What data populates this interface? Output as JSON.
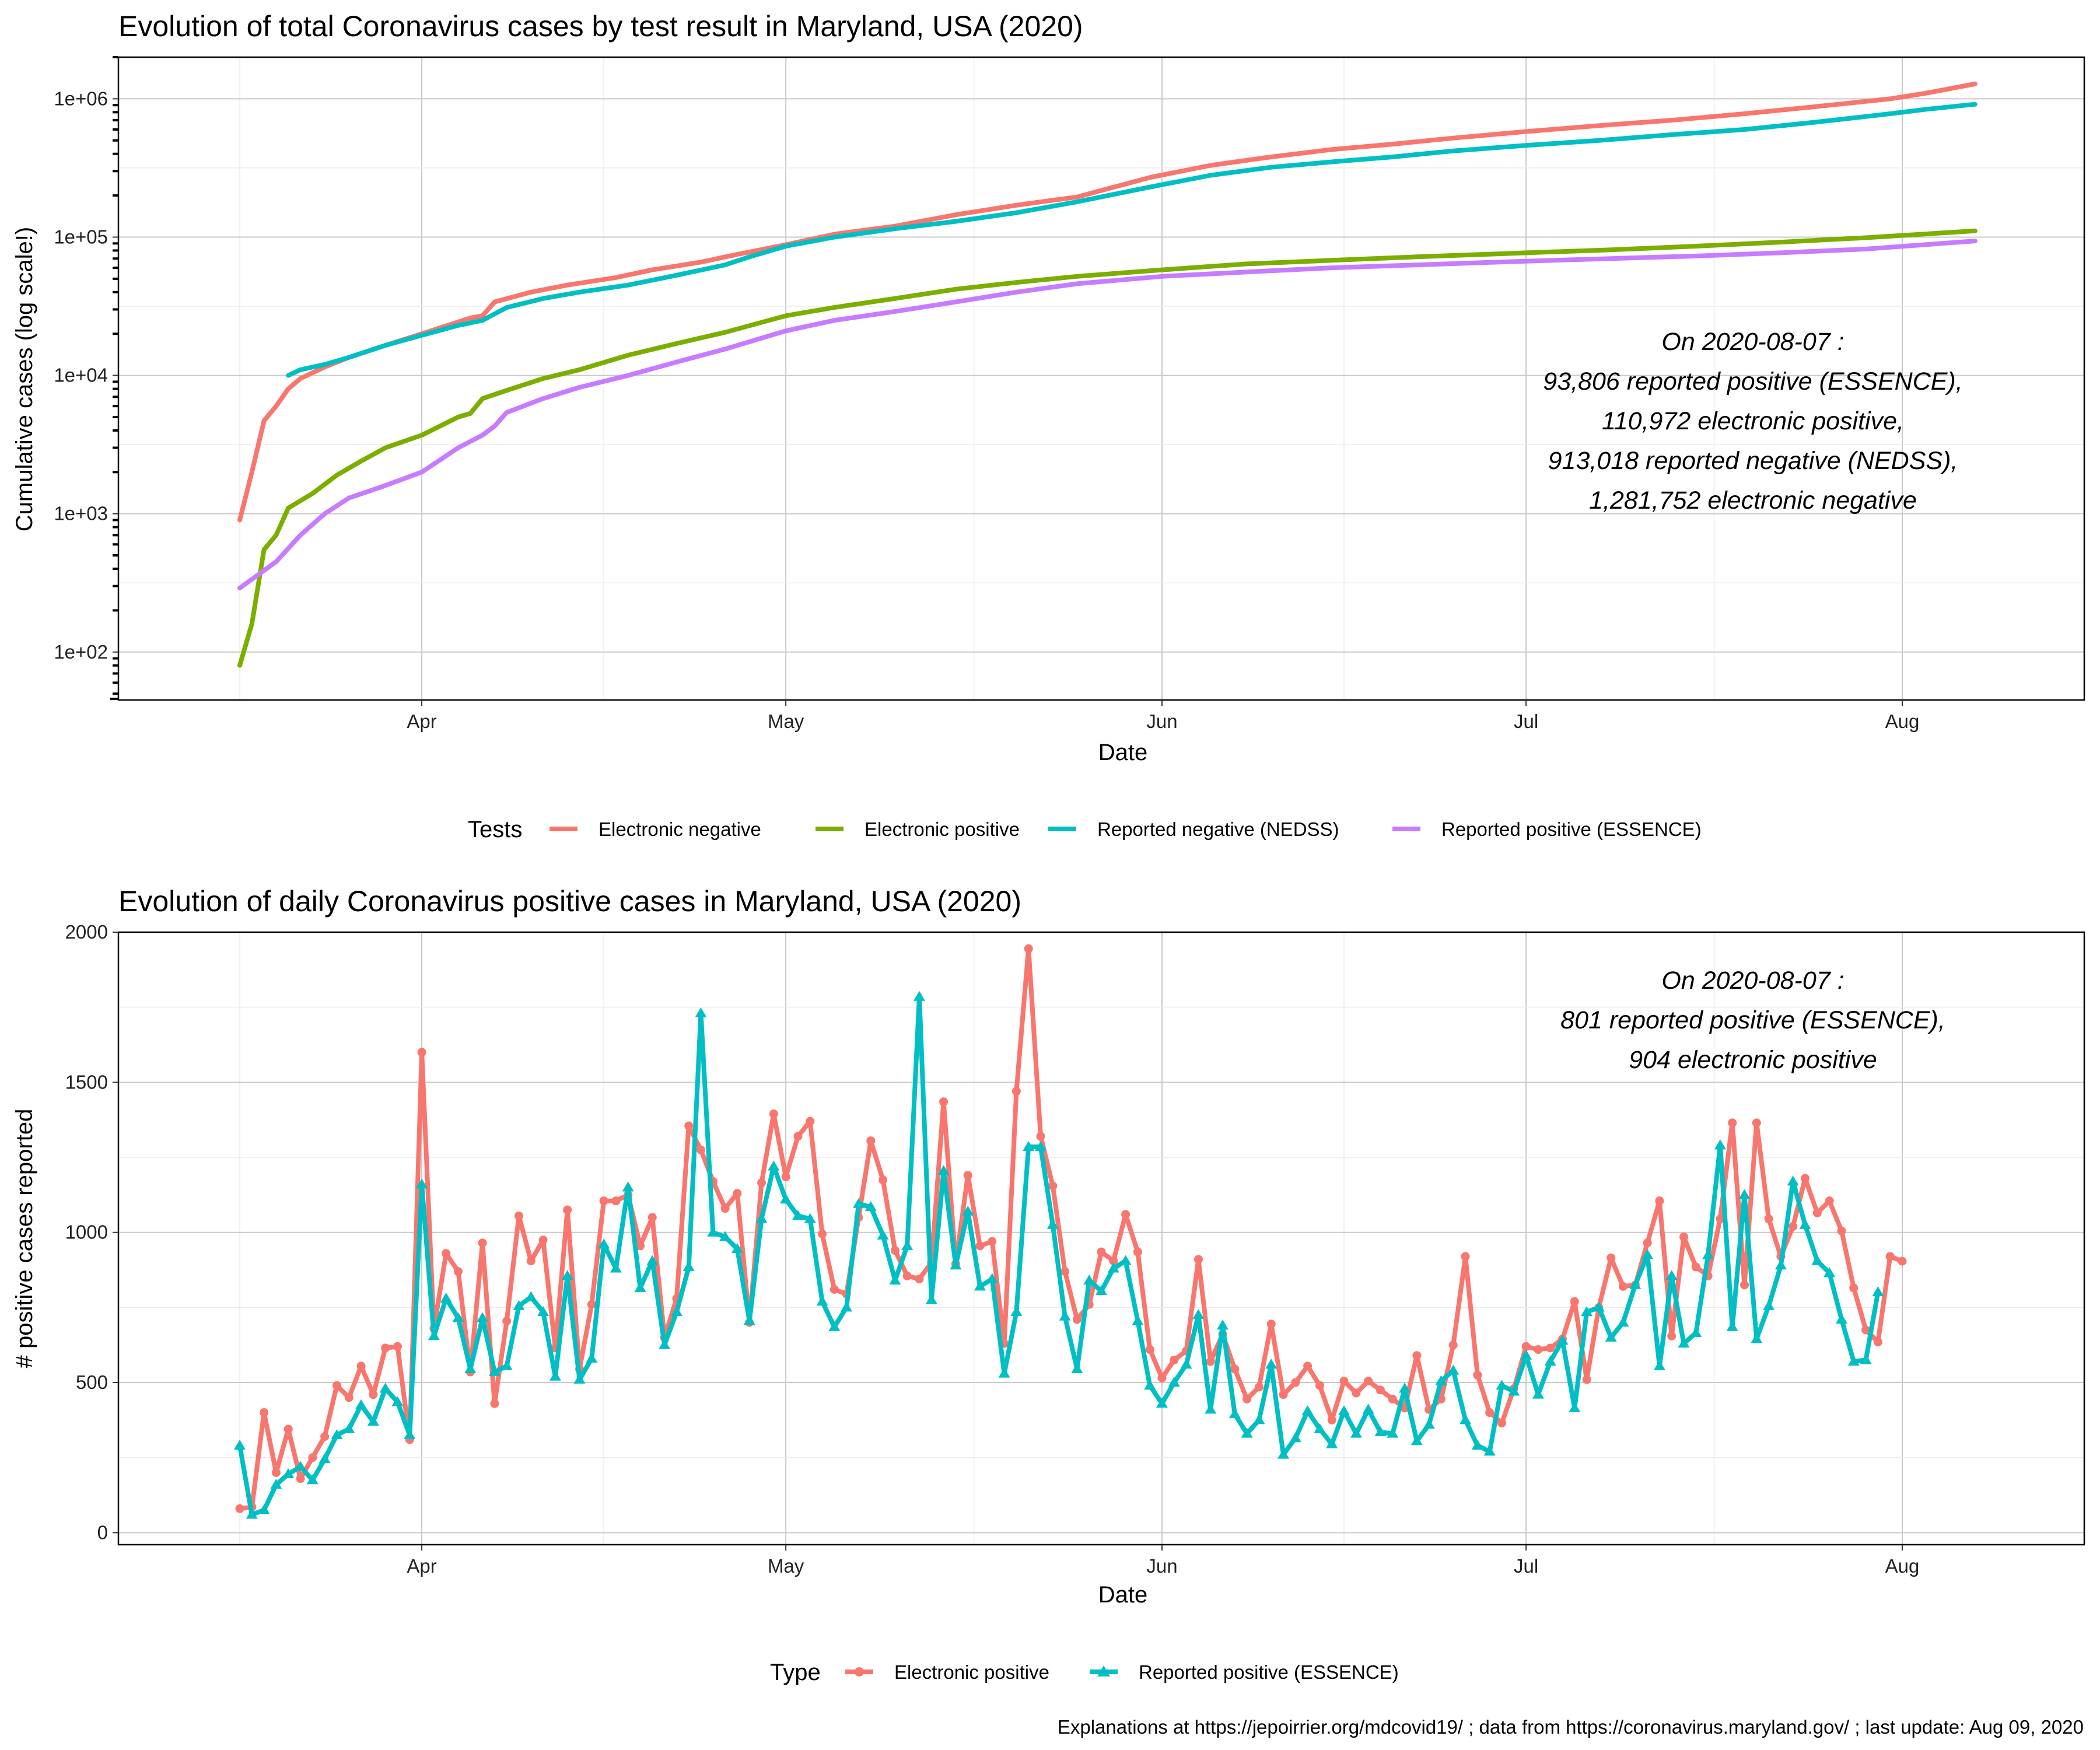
{
  "chart_data": [
    {
      "type": "line",
      "title": "Evolution of total Coronavirus cases by test result in Maryland, USA (2020)",
      "xlabel": "Date",
      "ylabel": "Cumulative cases  (log scale!)",
      "y_scale": "log10",
      "ylim": [
        45,
        2000000
      ],
      "xlim": [
        "2020-03-07",
        "2020-08-16"
      ],
      "x_ticks": [
        "2020-04-01",
        "2020-05-01",
        "2020-06-01",
        "2020-07-01",
        "2020-08-01"
      ],
      "x_tick_labels": [
        "Apr",
        "May",
        "Jun",
        "Jul",
        "Aug"
      ],
      "y_ticks": [
        100,
        1000,
        10000,
        100000,
        1000000
      ],
      "y_tick_labels": [
        "1e+02",
        "1e+03",
        "1e+04",
        "1e+05",
        "1e+06"
      ],
      "grid": true,
      "annotation": [
        "On 2020-08-07 :",
        "93,806 reported positive (ESSENCE),",
        "110,972 electronic positive,",
        "913,018 reported negative (NEDSS),",
        "1,281,752 electronic negative"
      ],
      "legend": {
        "title": "Tests",
        "position": "bottom"
      },
      "series": [
        {
          "name": "Electronic negative",
          "color": "#F8766D",
          "points": [
            [
              "2020-03-17",
              900
            ],
            [
              "2020-03-18",
              2000
            ],
            [
              "2020-03-19",
              4700
            ],
            [
              "2020-03-20",
              6000
            ],
            [
              "2020-03-21",
              8000
            ],
            [
              "2020-03-22",
              9500
            ],
            [
              "2020-03-24",
              11500
            ],
            [
              "2020-03-26",
              13500
            ],
            [
              "2020-03-29",
              16500
            ],
            [
              "2020-04-01",
              20000
            ],
            [
              "2020-04-05",
              26000
            ],
            [
              "2020-04-06",
              27000
            ],
            [
              "2020-04-07",
              34000
            ],
            [
              "2020-04-10",
              40000
            ],
            [
              "2020-04-13",
              45000
            ],
            [
              "2020-04-17",
              51000
            ],
            [
              "2020-04-20",
              58000
            ],
            [
              "2020-04-24",
              66000
            ],
            [
              "2020-04-27",
              75000
            ],
            [
              "2020-05-01",
              88000
            ],
            [
              "2020-05-05",
              105000
            ],
            [
              "2020-05-10",
              120000
            ],
            [
              "2020-05-15",
              145000
            ],
            [
              "2020-05-20",
              170000
            ],
            [
              "2020-05-25",
              195000
            ],
            [
              "2020-05-31",
              270000
            ],
            [
              "2020-06-05",
              330000
            ],
            [
              "2020-06-10",
              380000
            ],
            [
              "2020-06-15",
              430000
            ],
            [
              "2020-06-20",
              470000
            ],
            [
              "2020-06-25",
              520000
            ],
            [
              "2020-07-01",
              580000
            ],
            [
              "2020-07-07",
              640000
            ],
            [
              "2020-07-13",
              700000
            ],
            [
              "2020-07-19",
              780000
            ],
            [
              "2020-07-25",
              880000
            ],
            [
              "2020-07-31",
              1000000
            ],
            [
              "2020-08-03",
              1100000
            ],
            [
              "2020-08-07",
              1281752
            ]
          ]
        },
        {
          "name": "Electronic positive",
          "color": "#7CAE00",
          "points": [
            [
              "2020-03-17",
              80
            ],
            [
              "2020-03-18",
              160
            ],
            [
              "2020-03-19",
              550
            ],
            [
              "2020-03-20",
              700
            ],
            [
              "2020-03-21",
              1100
            ],
            [
              "2020-03-23",
              1400
            ],
            [
              "2020-03-25",
              1900
            ],
            [
              "2020-03-27",
              2400
            ],
            [
              "2020-03-29",
              3000
            ],
            [
              "2020-04-01",
              3700
            ],
            [
              "2020-04-04",
              5000
            ],
            [
              "2020-04-05",
              5300
            ],
            [
              "2020-04-06",
              6800
            ],
            [
              "2020-04-08",
              7800
            ],
            [
              "2020-04-11",
              9500
            ],
            [
              "2020-04-14",
              11000
            ],
            [
              "2020-04-18",
              14000
            ],
            [
              "2020-04-22",
              17000
            ],
            [
              "2020-04-26",
              20500
            ],
            [
              "2020-05-01",
              27000
            ],
            [
              "2020-05-05",
              31000
            ],
            [
              "2020-05-10",
              36000
            ],
            [
              "2020-05-15",
              42000
            ],
            [
              "2020-05-20",
              47000
            ],
            [
              "2020-05-25",
              52000
            ],
            [
              "2020-06-01",
              58000
            ],
            [
              "2020-06-08",
              64000
            ],
            [
              "2020-06-15",
              68000
            ],
            [
              "2020-06-22",
              72000
            ],
            [
              "2020-07-01",
              77000
            ],
            [
              "2020-07-08",
              81000
            ],
            [
              "2020-07-15",
              86000
            ],
            [
              "2020-07-22",
              92000
            ],
            [
              "2020-07-29",
              99000
            ],
            [
              "2020-08-07",
              110972
            ]
          ]
        },
        {
          "name": "Reported negative (NEDSS)",
          "color": "#00BFC4",
          "points": [
            [
              "2020-03-21",
              10000
            ],
            [
              "2020-03-22",
              11000
            ],
            [
              "2020-03-24",
              12000
            ],
            [
              "2020-03-26",
              13500
            ],
            [
              "2020-03-29",
              16500
            ],
            [
              "2020-04-01",
              19500
            ],
            [
              "2020-04-04",
              23000
            ],
            [
              "2020-04-06",
              25000
            ],
            [
              "2020-04-08",
              31000
            ],
            [
              "2020-04-11",
              36000
            ],
            [
              "2020-04-14",
              40000
            ],
            [
              "2020-04-18",
              45000
            ],
            [
              "2020-04-22",
              53000
            ],
            [
              "2020-04-26",
              63000
            ],
            [
              "2020-04-28",
              72000
            ],
            [
              "2020-05-01",
              86000
            ],
            [
              "2020-05-05",
              100000
            ],
            [
              "2020-05-10",
              115000
            ],
            [
              "2020-05-15",
              130000
            ],
            [
              "2020-05-20",
              150000
            ],
            [
              "2020-05-25",
              180000
            ],
            [
              "2020-05-31",
              230000
            ],
            [
              "2020-06-05",
              280000
            ],
            [
              "2020-06-10",
              320000
            ],
            [
              "2020-06-15",
              350000
            ],
            [
              "2020-06-20",
              380000
            ],
            [
              "2020-06-25",
              420000
            ],
            [
              "2020-07-01",
              460000
            ],
            [
              "2020-07-07",
              500000
            ],
            [
              "2020-07-13",
              550000
            ],
            [
              "2020-07-19",
              600000
            ],
            [
              "2020-07-25",
              680000
            ],
            [
              "2020-07-31",
              780000
            ],
            [
              "2020-08-03",
              840000
            ],
            [
              "2020-08-07",
              913018
            ]
          ]
        },
        {
          "name": "Reported positive (ESSENCE)",
          "color": "#C77CFF",
          "points": [
            [
              "2020-03-17",
              290
            ],
            [
              "2020-03-20",
              450
            ],
            [
              "2020-03-22",
              700
            ],
            [
              "2020-03-24",
              1000
            ],
            [
              "2020-03-26",
              1300
            ],
            [
              "2020-03-29",
              1600
            ],
            [
              "2020-04-01",
              2000
            ],
            [
              "2020-04-04",
              3000
            ],
            [
              "2020-04-06",
              3700
            ],
            [
              "2020-04-07",
              4300
            ],
            [
              "2020-04-08",
              5400
            ],
            [
              "2020-04-11",
              6800
            ],
            [
              "2020-04-14",
              8200
            ],
            [
              "2020-04-18",
              10000
            ],
            [
              "2020-04-22",
              12500
            ],
            [
              "2020-04-26",
              15500
            ],
            [
              "2020-05-01",
              21000
            ],
            [
              "2020-05-05",
              25000
            ],
            [
              "2020-05-10",
              29000
            ],
            [
              "2020-05-15",
              34000
            ],
            [
              "2020-05-20",
              40000
            ],
            [
              "2020-05-25",
              46000
            ],
            [
              "2020-06-01",
              52000
            ],
            [
              "2020-06-08",
              56000
            ],
            [
              "2020-06-15",
              60000
            ],
            [
              "2020-06-22",
              63000
            ],
            [
              "2020-07-01",
              67000
            ],
            [
              "2020-07-08",
              70000
            ],
            [
              "2020-07-15",
              73000
            ],
            [
              "2020-07-22",
              77000
            ],
            [
              "2020-07-29",
              82000
            ],
            [
              "2020-08-07",
              93806
            ]
          ]
        }
      ]
    },
    {
      "type": "line",
      "title": "Evolution of daily Coronavirus positive cases in Maryland, USA (2020)",
      "xlabel": "Date",
      "ylabel": "# positive cases reported",
      "ylim": [
        -40,
        2000
      ],
      "xlim": [
        "2020-03-07",
        "2020-08-16"
      ],
      "x_ticks": [
        "2020-04-01",
        "2020-05-01",
        "2020-06-01",
        "2020-07-01",
        "2020-08-01"
      ],
      "x_tick_labels": [
        "Apr",
        "May",
        "Jun",
        "Jul",
        "Aug"
      ],
      "y_ticks": [
        0,
        500,
        1000,
        1500,
        2000
      ],
      "y_tick_labels": [
        "0",
        "500",
        "1000",
        "1500",
        "2000"
      ],
      "grid": true,
      "annotation": [
        "On 2020-08-07 :",
        "801 reported positive (ESSENCE),",
        "904 electronic positive"
      ],
      "legend": {
        "title": "Type",
        "position": "bottom"
      },
      "x_start": "2020-03-17",
      "series": [
        {
          "name": "Electronic positive",
          "color": "#F8766D",
          "marker": "circle",
          "values": [
            80,
            85,
            400,
            200,
            345,
            180,
            250,
            320,
            490,
            450,
            555,
            460,
            615,
            620,
            310,
            1600,
            680,
            930,
            870,
            535,
            965,
            430,
            705,
            1055,
            905,
            975,
            615,
            1075,
            545,
            760,
            1105,
            1105,
            1125,
            955,
            1050,
            650,
            780,
            1355,
            1275,
            1170,
            1080,
            1130,
            700,
            1165,
            1395,
            1185,
            1320,
            1370,
            995,
            810,
            795,
            1050,
            1305,
            1175,
            940,
            855,
            845,
            900,
            1435,
            895,
            1190,
            955,
            970,
            630,
            1470,
            1945,
            1320,
            1155,
            870,
            710,
            760,
            935,
            905,
            1060,
            935,
            610,
            515,
            575,
            605,
            910,
            570,
            660,
            545,
            445,
            485,
            695,
            460,
            500,
            555,
            490,
            375,
            505,
            465,
            505,
            475,
            445,
            415,
            590,
            410,
            445,
            625,
            920,
            525,
            400,
            365,
            480,
            620,
            610,
            615,
            645,
            770,
            510,
            750,
            915,
            820,
            825,
            965,
            1105,
            655,
            985,
            885,
            855,
            1045,
            1365,
            825,
            1365,
            1045,
            920,
            1020,
            1180,
            1065,
            1105,
            1005,
            815,
            675,
            635,
            920,
            904
          ]
        },
        {
          "name": "Reported positive (ESSENCE)",
          "color": "#00BFC4",
          "marker": "triangle",
          "values": [
            290,
            60,
            75,
            160,
            195,
            220,
            175,
            245,
            325,
            345,
            425,
            370,
            480,
            435,
            325,
            1160,
            655,
            780,
            715,
            545,
            715,
            535,
            555,
            755,
            785,
            735,
            520,
            855,
            510,
            580,
            960,
            880,
            1150,
            815,
            905,
            625,
            735,
            885,
            1730,
            1000,
            985,
            945,
            705,
            1045,
            1220,
            1110,
            1055,
            1045,
            770,
            685,
            750,
            1095,
            1085,
            990,
            840,
            955,
            1785,
            775,
            1205,
            890,
            1070,
            820,
            845,
            530,
            735,
            1285,
            1285,
            1025,
            720,
            545,
            840,
            805,
            880,
            905,
            705,
            490,
            430,
            500,
            560,
            725,
            410,
            690,
            395,
            330,
            375,
            560,
            260,
            315,
            405,
            345,
            295,
            405,
            330,
            410,
            335,
            330,
            480,
            305,
            360,
            505,
            540,
            375,
            290,
            270,
            490,
            470,
            590,
            460,
            570,
            640,
            415,
            735,
            750,
            650,
            700,
            825,
            925,
            555,
            855,
            630,
            665,
            925,
            1290,
            685,
            1125,
            645,
            755,
            890,
            1170,
            1025,
            905,
            865,
            710,
            570,
            575,
            801
          ]
        }
      ]
    }
  ],
  "caption": "Explanations at https://jepoirrier.org/mdcovid19/ ; data from https://coronavirus.maryland.gov/ ; last update: Aug 09, 2020"
}
